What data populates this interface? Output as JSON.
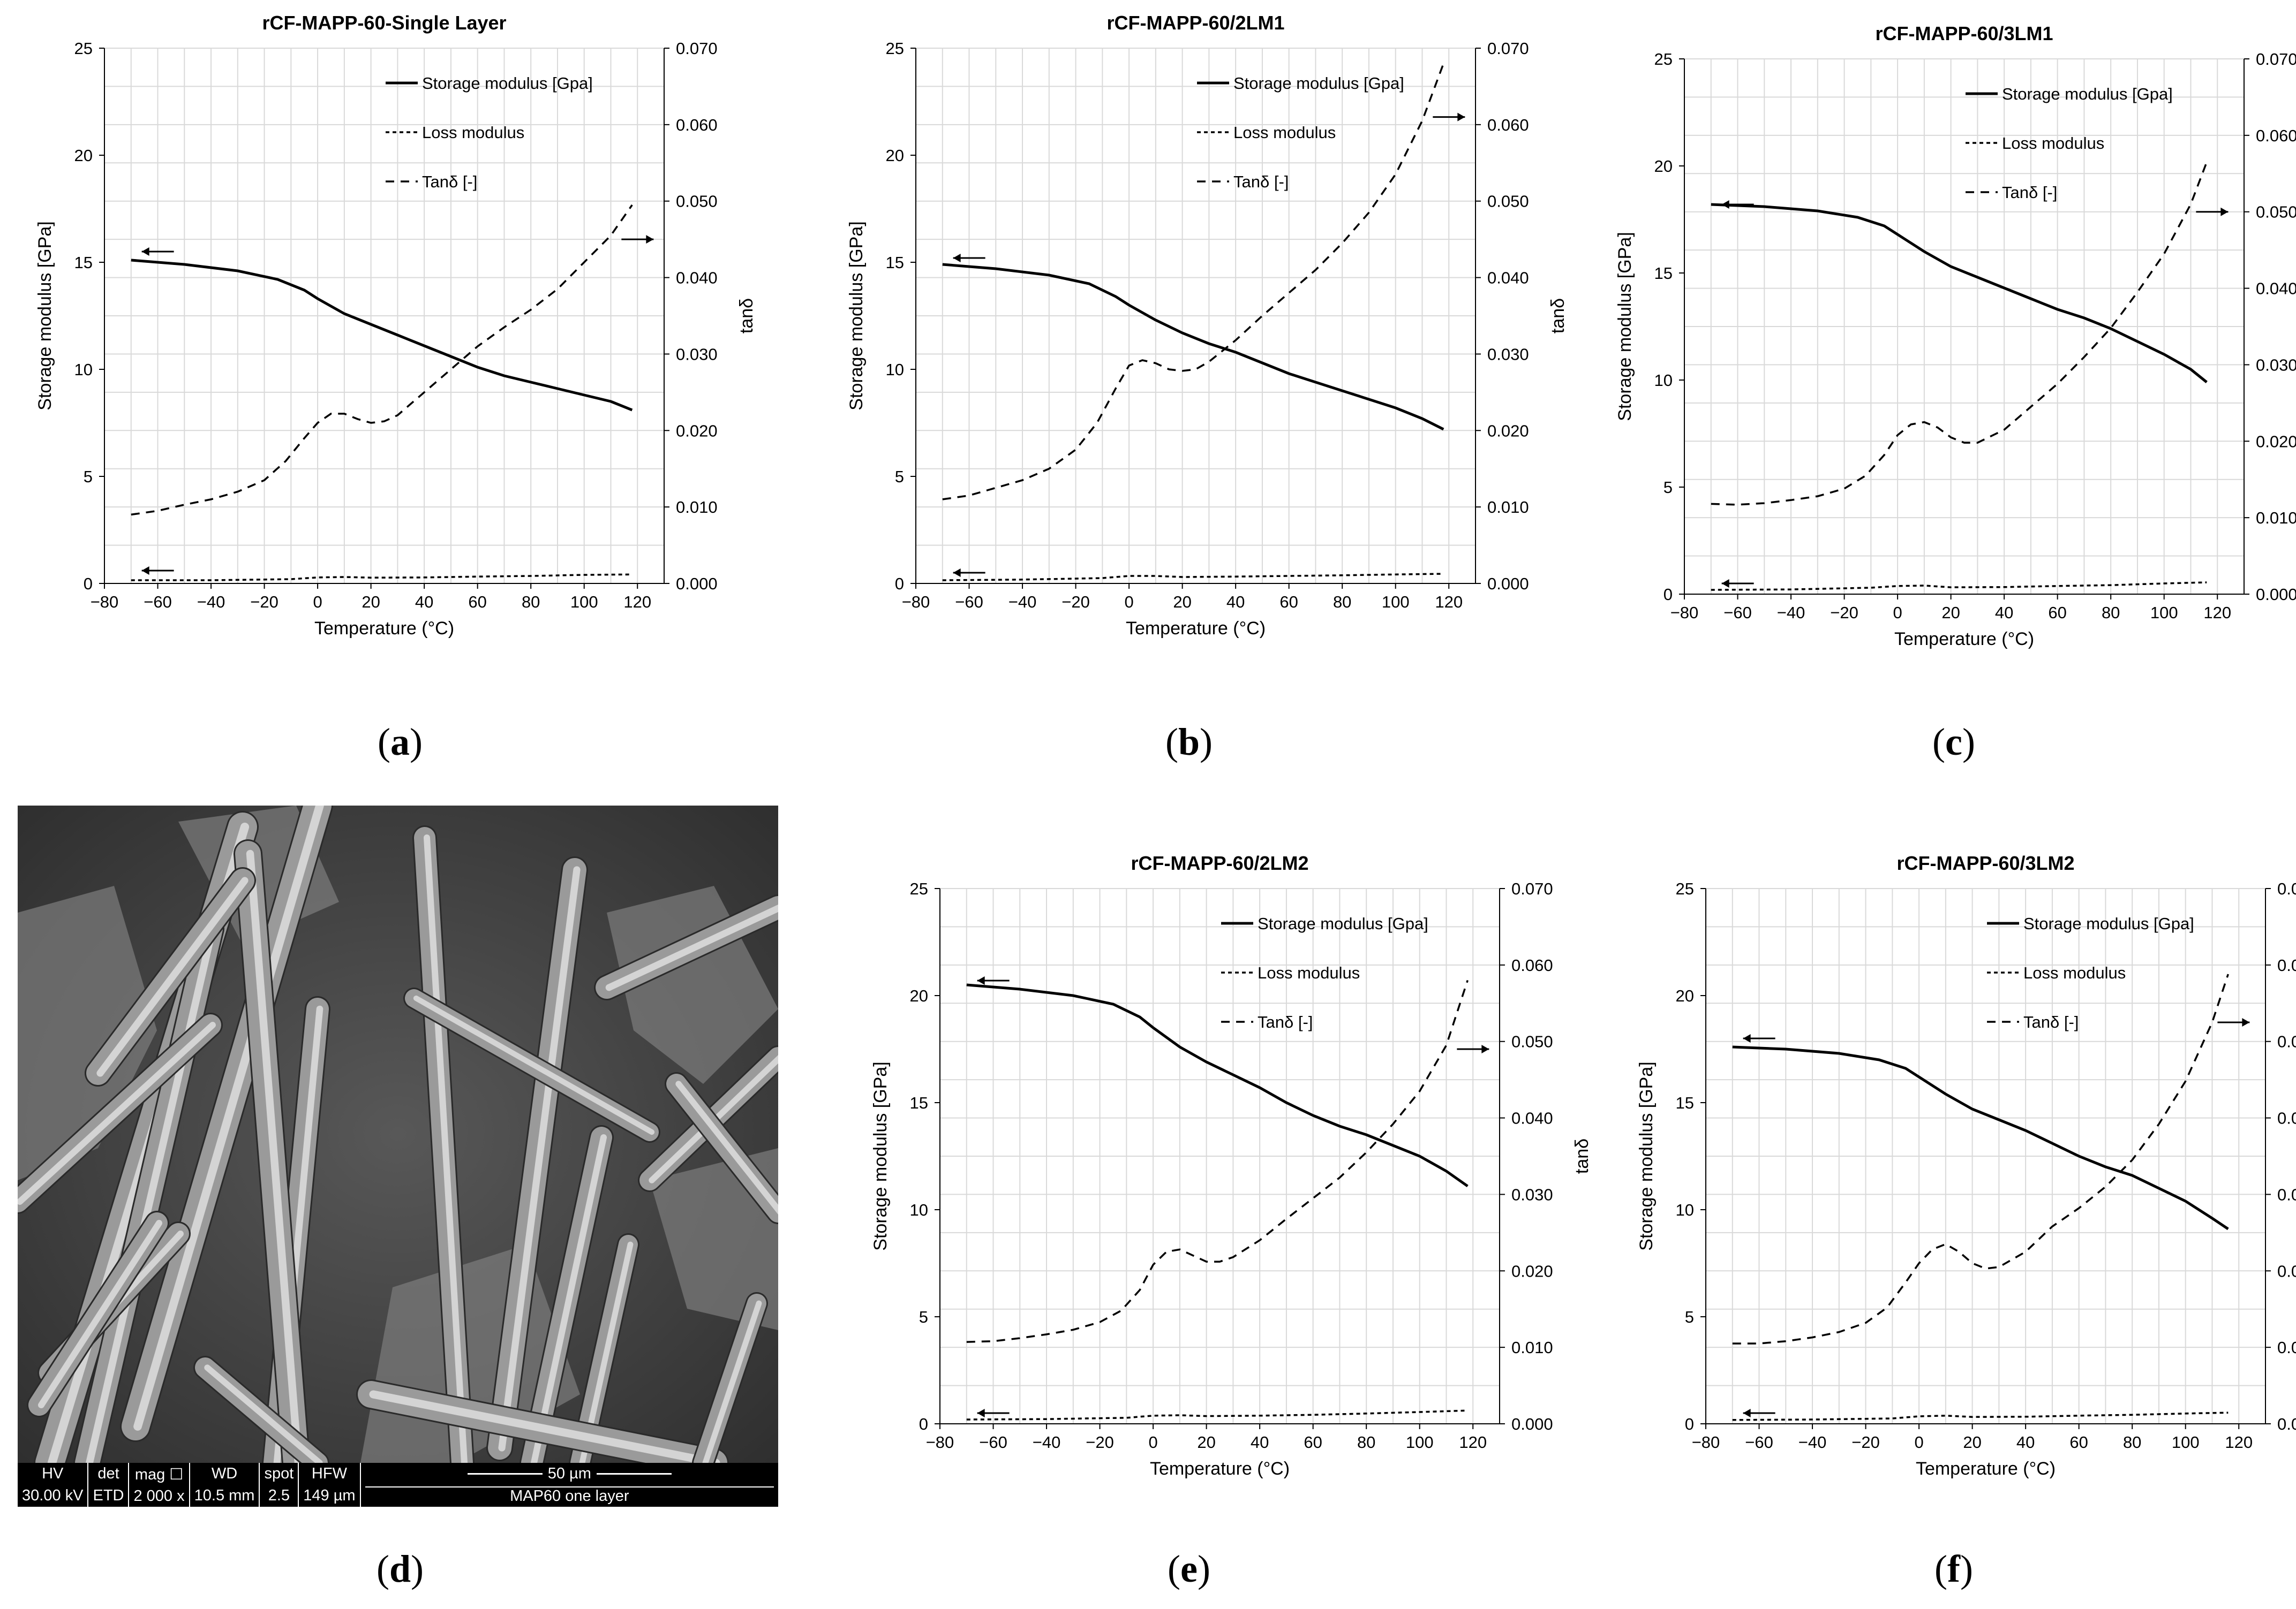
{
  "axes_text": {
    "xlabel": "Temperature (°C)",
    "ylabel_left": "Storage modulus [GPa]",
    "ylabel_right": "tanδ",
    "x_ticks": [
      "−80",
      "−60",
      "−40",
      "−20",
      "0",
      "20",
      "40",
      "60",
      "80",
      "100",
      "120"
    ],
    "y_left_ticks": [
      "0",
      "5",
      "10",
      "15",
      "20",
      "25"
    ],
    "y_right_ticks": [
      "0.000",
      "0.010",
      "0.020",
      "0.030",
      "0.040",
      "0.050",
      "0.060",
      "0.070"
    ]
  },
  "legend": {
    "storage": "Storage modulus [Gpa]",
    "loss": "Loss modulus",
    "tan": "Tanδ [-]"
  },
  "captions": [
    "(a)",
    "(b)",
    "(c)",
    "(d)",
    "(e)",
    "(f)"
  ],
  "sem": {
    "description": "SEM micrograph of fractured rCF-MAPP-60 single layer",
    "headers": [
      "HV",
      "det",
      "mag ☐",
      "WD",
      "spot",
      "HFW"
    ],
    "values": [
      "30.00 kV",
      "ETD",
      "2 000 x",
      "10.5 mm",
      "2.5",
      "149 µm"
    ],
    "scale_label": "50 µm",
    "sample_label": "MAP60 one layer"
  },
  "colors": {
    "line": "#000000",
    "grid": "#d9d9d9",
    "background": "#ffffff"
  },
  "chart_data": [
    {
      "id": "a",
      "type": "line",
      "title": "rCF-MAPP-60-Single Layer",
      "xlim": [
        -80,
        130
      ],
      "ylim_left": [
        0,
        25
      ],
      "ylim_right": [
        0,
        0.07
      ],
      "grid": true,
      "legend_position": "top-right",
      "series": [
        {
          "name": "Storage modulus [Gpa]",
          "axis": "left",
          "style": "solid",
          "x": [
            -70,
            -50,
            -30,
            -15,
            -5,
            0,
            10,
            20,
            30,
            40,
            50,
            60,
            70,
            80,
            90,
            100,
            110,
            118
          ],
          "y": [
            15.1,
            14.9,
            14.6,
            14.2,
            13.7,
            13.3,
            12.6,
            12.1,
            11.6,
            11.1,
            10.6,
            10.1,
            9.7,
            9.4,
            9.1,
            8.8,
            8.5,
            8.1
          ]
        },
        {
          "name": "Loss modulus",
          "axis": "left",
          "style": "fine-dash",
          "x": [
            -70,
            -40,
            -10,
            0,
            10,
            20,
            40,
            60,
            80,
            100,
            118
          ],
          "y": [
            0.15,
            0.15,
            0.2,
            0.28,
            0.3,
            0.27,
            0.28,
            0.32,
            0.35,
            0.4,
            0.42
          ]
        },
        {
          "name": "Tanδ [-]",
          "axis": "right",
          "style": "dash",
          "x": [
            -70,
            -60,
            -50,
            -40,
            -30,
            -20,
            -12,
            -5,
            0,
            5,
            10,
            15,
            20,
            25,
            30,
            40,
            50,
            60,
            70,
            80,
            90,
            100,
            110,
            118
          ],
          "y": [
            0.009,
            0.0095,
            0.0103,
            0.011,
            0.012,
            0.0135,
            0.016,
            0.019,
            0.021,
            0.0222,
            0.0222,
            0.0215,
            0.021,
            0.0212,
            0.022,
            0.025,
            0.028,
            0.031,
            0.0335,
            0.0358,
            0.0385,
            0.042,
            0.0455,
            0.0495
          ]
        }
      ],
      "annotations": {
        "left_arrow": {
          "x": -65,
          "y": 15.5
        },
        "left_arrow_loss": {
          "x": -65,
          "y": 0.6
        },
        "right_arrow": {
          "x": 116,
          "y": 0.045
        }
      }
    },
    {
      "id": "b",
      "type": "line",
      "title": "rCF-MAPP-60/2LM1",
      "xlim": [
        -80,
        130
      ],
      "ylim_left": [
        0,
        25
      ],
      "ylim_right": [
        0,
        0.07
      ],
      "grid": true,
      "legend_position": "top-right",
      "series": [
        {
          "name": "Storage modulus [Gpa]",
          "axis": "left",
          "style": "solid",
          "x": [
            -70,
            -50,
            -30,
            -15,
            -5,
            0,
            10,
            20,
            30,
            40,
            50,
            60,
            70,
            80,
            90,
            100,
            110,
            118
          ],
          "y": [
            14.9,
            14.7,
            14.4,
            14.0,
            13.4,
            13.0,
            12.3,
            11.7,
            11.2,
            10.8,
            10.3,
            9.8,
            9.4,
            9.0,
            8.6,
            8.2,
            7.7,
            7.2
          ]
        },
        {
          "name": "Loss modulus",
          "axis": "left",
          "style": "fine-dash",
          "x": [
            -70,
            -40,
            -10,
            0,
            10,
            20,
            40,
            60,
            80,
            100,
            118
          ],
          "y": [
            0.15,
            0.18,
            0.25,
            0.35,
            0.35,
            0.3,
            0.32,
            0.35,
            0.38,
            0.42,
            0.45
          ]
        },
        {
          "name": "Tanδ [-]",
          "axis": "right",
          "style": "dash",
          "x": [
            -70,
            -60,
            -50,
            -40,
            -30,
            -20,
            -12,
            -5,
            0,
            5,
            10,
            15,
            20,
            25,
            30,
            40,
            50,
            60,
            70,
            80,
            90,
            100,
            110,
            118
          ],
          "y": [
            0.011,
            0.0115,
            0.0125,
            0.0135,
            0.015,
            0.0175,
            0.021,
            0.0255,
            0.0285,
            0.0292,
            0.0288,
            0.028,
            0.0278,
            0.028,
            0.029,
            0.0318,
            0.035,
            0.038,
            0.041,
            0.0445,
            0.0485,
            0.0535,
            0.0605,
            0.068
          ]
        }
      ],
      "annotations": {
        "left_arrow": {
          "x": -65,
          "y": 15.2
        },
        "left_arrow_loss": {
          "x": -65,
          "y": 0.5
        },
        "right_arrow": {
          "x": 116,
          "y": 0.061
        }
      }
    },
    {
      "id": "c",
      "type": "line",
      "title": "rCF-MAPP-60/3LM1",
      "xlim": [
        -80,
        130
      ],
      "ylim_left": [
        0,
        25
      ],
      "ylim_right": [
        0,
        0.07
      ],
      "grid": true,
      "legend_position": "top-right",
      "series": [
        {
          "name": "Storage modulus [Gpa]",
          "axis": "left",
          "style": "solid",
          "x": [
            -70,
            -50,
            -30,
            -15,
            -5,
            0,
            10,
            20,
            30,
            40,
            50,
            60,
            70,
            80,
            90,
            100,
            110,
            116
          ],
          "y": [
            18.2,
            18.1,
            17.9,
            17.6,
            17.2,
            16.8,
            16.0,
            15.3,
            14.8,
            14.3,
            13.8,
            13.3,
            12.9,
            12.4,
            11.8,
            11.2,
            10.5,
            9.9
          ]
        },
        {
          "name": "Loss modulus",
          "axis": "left",
          "style": "fine-dash",
          "x": [
            -70,
            -40,
            -10,
            0,
            10,
            20,
            40,
            60,
            80,
            100,
            116
          ],
          "y": [
            0.2,
            0.22,
            0.3,
            0.38,
            0.4,
            0.32,
            0.33,
            0.38,
            0.42,
            0.5,
            0.55
          ]
        },
        {
          "name": "Tanδ [-]",
          "axis": "right",
          "style": "dash",
          "x": [
            -70,
            -60,
            -50,
            -40,
            -30,
            -20,
            -12,
            -5,
            0,
            5,
            10,
            15,
            20,
            25,
            30,
            40,
            50,
            60,
            70,
            80,
            90,
            100,
            110,
            116
          ],
          "y": [
            0.0118,
            0.0117,
            0.0119,
            0.0123,
            0.0128,
            0.0138,
            0.0155,
            0.0182,
            0.0208,
            0.0222,
            0.0225,
            0.0218,
            0.0205,
            0.0198,
            0.0198,
            0.0215,
            0.0245,
            0.0275,
            0.031,
            0.0348,
            0.0395,
            0.0445,
            0.051,
            0.0565
          ]
        }
      ],
      "annotations": {
        "left_arrow": {
          "x": -65,
          "y": 18.2
        },
        "left_arrow_loss": {
          "x": -65,
          "y": 0.5
        },
        "right_arrow": {
          "x": 114,
          "y": 0.05
        }
      }
    },
    {
      "id": "e",
      "type": "line",
      "title": "rCF-MAPP-60/2LM2",
      "xlim": [
        -80,
        130
      ],
      "ylim_left": [
        0,
        25
      ],
      "ylim_right": [
        0,
        0.07
      ],
      "grid": true,
      "legend_position": "top-right",
      "series": [
        {
          "name": "Storage modulus [Gpa]",
          "axis": "left",
          "style": "solid",
          "x": [
            -70,
            -50,
            -30,
            -15,
            -5,
            0,
            10,
            20,
            30,
            40,
            50,
            60,
            70,
            80,
            90,
            100,
            110,
            118
          ],
          "y": [
            20.5,
            20.3,
            20.0,
            19.6,
            19.0,
            18.5,
            17.6,
            16.9,
            16.3,
            15.7,
            15.0,
            14.4,
            13.9,
            13.5,
            13.0,
            12.5,
            11.8,
            11.1
          ]
        },
        {
          "name": "Loss modulus",
          "axis": "left",
          "style": "fine-dash",
          "x": [
            -70,
            -40,
            -10,
            0,
            10,
            20,
            40,
            60,
            80,
            100,
            118
          ],
          "y": [
            0.2,
            0.22,
            0.28,
            0.38,
            0.4,
            0.36,
            0.38,
            0.42,
            0.48,
            0.55,
            0.62
          ]
        },
        {
          "name": "Tanδ [-]",
          "axis": "right",
          "style": "dash",
          "x": [
            -70,
            -60,
            -50,
            -40,
            -30,
            -20,
            -12,
            -5,
            0,
            5,
            10,
            15,
            20,
            25,
            30,
            40,
            50,
            60,
            70,
            80,
            90,
            100,
            110,
            118
          ],
          "y": [
            0.0107,
            0.0108,
            0.0112,
            0.0117,
            0.0123,
            0.0133,
            0.0148,
            0.0175,
            0.0208,
            0.0225,
            0.0228,
            0.022,
            0.0212,
            0.0212,
            0.0218,
            0.024,
            0.0268,
            0.0295,
            0.0322,
            0.0355,
            0.0392,
            0.0435,
            0.0495,
            0.058
          ]
        }
      ],
      "annotations": {
        "left_arrow": {
          "x": -65,
          "y": 20.7
        },
        "left_arrow_loss": {
          "x": -65,
          "y": 0.5
        },
        "right_arrow": {
          "x": 116,
          "y": 0.049
        }
      }
    },
    {
      "id": "f",
      "type": "line",
      "title": "rCF-MAPP-60/3LM2",
      "xlim": [
        -80,
        130
      ],
      "ylim_left": [
        0,
        25
      ],
      "ylim_right": [
        0,
        0.07
      ],
      "grid": true,
      "legend_position": "top-right",
      "series": [
        {
          "name": "Storage modulus [Gpa]",
          "axis": "left",
          "style": "solid",
          "x": [
            -70,
            -50,
            -30,
            -15,
            -5,
            0,
            10,
            20,
            30,
            40,
            50,
            60,
            70,
            80,
            90,
            100,
            110,
            116
          ],
          "y": [
            17.6,
            17.5,
            17.3,
            17.0,
            16.6,
            16.2,
            15.4,
            14.7,
            14.2,
            13.7,
            13.1,
            12.5,
            12.0,
            11.6,
            11.0,
            10.4,
            9.6,
            9.1
          ]
        },
        {
          "name": "Loss modulus",
          "axis": "left",
          "style": "fine-dash",
          "x": [
            -70,
            -40,
            -10,
            0,
            10,
            20,
            40,
            60,
            80,
            100,
            116
          ],
          "y": [
            0.18,
            0.2,
            0.25,
            0.35,
            0.38,
            0.32,
            0.33,
            0.38,
            0.42,
            0.48,
            0.52
          ]
        },
        {
          "name": "Tanδ [-]",
          "axis": "right",
          "style": "dash",
          "x": [
            -70,
            -60,
            -50,
            -40,
            -30,
            -20,
            -12,
            -5,
            0,
            5,
            10,
            15,
            20,
            25,
            30,
            40,
            50,
            60,
            70,
            80,
            90,
            100,
            110,
            116
          ],
          "y": [
            0.0105,
            0.0105,
            0.0108,
            0.0113,
            0.012,
            0.0132,
            0.0152,
            0.0185,
            0.021,
            0.0228,
            0.0235,
            0.0225,
            0.021,
            0.0203,
            0.0205,
            0.0225,
            0.0258,
            0.0282,
            0.031,
            0.0345,
            0.0392,
            0.0448,
            0.0525,
            0.0588
          ]
        }
      ],
      "annotations": {
        "left_arrow": {
          "x": -65,
          "y": 18.0
        },
        "left_arrow_loss": {
          "x": -65,
          "y": 0.5
        },
        "right_arrow": {
          "x": 114,
          "y": 0.0525
        }
      }
    }
  ]
}
